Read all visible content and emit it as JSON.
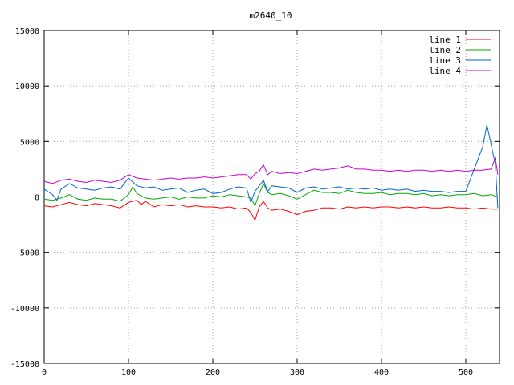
{
  "chart_data": {
    "type": "line",
    "title": "m2640_10",
    "xlabel": "",
    "ylabel": "",
    "xlim": [
      0,
      540
    ],
    "ylim": [
      -15000,
      15000
    ],
    "xticks": [
      0,
      100,
      200,
      300,
      400,
      500
    ],
    "yticks": [
      -15000,
      -10000,
      -5000,
      0,
      5000,
      10000,
      15000
    ],
    "grid": true,
    "legend_position": "top-right",
    "series": [
      {
        "name": "line 1",
        "color": "#ff0000",
        "points": [
          [
            0,
            -800
          ],
          [
            10,
            -900
          ],
          [
            20,
            -700
          ],
          [
            30,
            -500
          ],
          [
            40,
            -700
          ],
          [
            50,
            -800
          ],
          [
            60,
            -600
          ],
          [
            70,
            -700
          ],
          [
            80,
            -800
          ],
          [
            90,
            -1000
          ],
          [
            100,
            -500
          ],
          [
            110,
            -300
          ],
          [
            115,
            -700
          ],
          [
            120,
            -400
          ],
          [
            130,
            -900
          ],
          [
            140,
            -700
          ],
          [
            150,
            -800
          ],
          [
            160,
            -700
          ],
          [
            170,
            -900
          ],
          [
            180,
            -800
          ],
          [
            190,
            -900
          ],
          [
            200,
            -900
          ],
          [
            210,
            -1000
          ],
          [
            220,
            -900
          ],
          [
            230,
            -1100
          ],
          [
            240,
            -1000
          ],
          [
            245,
            -1400
          ],
          [
            250,
            -2100
          ],
          [
            255,
            -900
          ],
          [
            260,
            -400
          ],
          [
            265,
            -1000
          ],
          [
            270,
            -1200
          ],
          [
            280,
            -1100
          ],
          [
            290,
            -1300
          ],
          [
            300,
            -1600
          ],
          [
            310,
            -1300
          ],
          [
            320,
            -1200
          ],
          [
            330,
            -1000
          ],
          [
            340,
            -1000
          ],
          [
            350,
            -1100
          ],
          [
            360,
            -900
          ],
          [
            370,
            -1000
          ],
          [
            380,
            -900
          ],
          [
            390,
            -1000
          ],
          [
            400,
            -900
          ],
          [
            410,
            -900
          ],
          [
            420,
            -1000
          ],
          [
            430,
            -900
          ],
          [
            440,
            -1000
          ],
          [
            450,
            -900
          ],
          [
            460,
            -1000
          ],
          [
            470,
            -1000
          ],
          [
            480,
            -900
          ],
          [
            490,
            -1000
          ],
          [
            500,
            -1000
          ],
          [
            510,
            -1100
          ],
          [
            520,
            -1000
          ],
          [
            530,
            -1100
          ],
          [
            538,
            -1100
          ]
        ]
      },
      {
        "name": "line 2",
        "color": "#00aa00",
        "points": [
          [
            0,
            -200
          ],
          [
            10,
            -300
          ],
          [
            20,
            -100
          ],
          [
            30,
            200
          ],
          [
            40,
            -200
          ],
          [
            50,
            -300
          ],
          [
            60,
            -100
          ],
          [
            70,
            -200
          ],
          [
            80,
            -200
          ],
          [
            90,
            -400
          ],
          [
            100,
            200
          ],
          [
            105,
            900
          ],
          [
            110,
            300
          ],
          [
            120,
            -100
          ],
          [
            130,
            -200
          ],
          [
            140,
            -100
          ],
          [
            150,
            0
          ],
          [
            160,
            -200
          ],
          [
            170,
            0
          ],
          [
            180,
            -100
          ],
          [
            190,
            -100
          ],
          [
            200,
            100
          ],
          [
            210,
            0
          ],
          [
            220,
            200
          ],
          [
            230,
            100
          ],
          [
            240,
            0
          ],
          [
            245,
            -100
          ],
          [
            250,
            -800
          ],
          [
            255,
            300
          ],
          [
            260,
            1200
          ],
          [
            265,
            400
          ],
          [
            270,
            200
          ],
          [
            280,
            300
          ],
          [
            290,
            100
          ],
          [
            300,
            -200
          ],
          [
            310,
            200
          ],
          [
            320,
            600
          ],
          [
            330,
            400
          ],
          [
            340,
            400
          ],
          [
            350,
            300
          ],
          [
            360,
            600
          ],
          [
            370,
            400
          ],
          [
            380,
            300
          ],
          [
            390,
            300
          ],
          [
            400,
            400
          ],
          [
            410,
            200
          ],
          [
            420,
            300
          ],
          [
            430,
            300
          ],
          [
            440,
            200
          ],
          [
            450,
            300
          ],
          [
            460,
            100
          ],
          [
            470,
            200
          ],
          [
            480,
            100
          ],
          [
            490,
            200
          ],
          [
            500,
            200
          ],
          [
            510,
            300
          ],
          [
            520,
            100
          ],
          [
            530,
            200
          ],
          [
            538,
            0
          ]
        ]
      },
      {
        "name": "line 3",
        "color": "#0066cc",
        "points": [
          [
            0,
            700
          ],
          [
            10,
            200
          ],
          [
            15,
            -300
          ],
          [
            20,
            700
          ],
          [
            30,
            1200
          ],
          [
            40,
            800
          ],
          [
            50,
            700
          ],
          [
            60,
            600
          ],
          [
            70,
            800
          ],
          [
            80,
            900
          ],
          [
            90,
            700
          ],
          [
            100,
            1700
          ],
          [
            110,
            1000
          ],
          [
            120,
            800
          ],
          [
            130,
            900
          ],
          [
            140,
            600
          ],
          [
            150,
            700
          ],
          [
            160,
            800
          ],
          [
            170,
            400
          ],
          [
            180,
            600
          ],
          [
            190,
            700
          ],
          [
            200,
            300
          ],
          [
            210,
            400
          ],
          [
            220,
            700
          ],
          [
            230,
            900
          ],
          [
            240,
            800
          ],
          [
            245,
            -500
          ],
          [
            250,
            500
          ],
          [
            255,
            1000
          ],
          [
            260,
            1500
          ],
          [
            265,
            500
          ],
          [
            270,
            1000
          ],
          [
            280,
            900
          ],
          [
            290,
            800
          ],
          [
            300,
            400
          ],
          [
            310,
            800
          ],
          [
            320,
            900
          ],
          [
            330,
            700
          ],
          [
            340,
            800
          ],
          [
            350,
            900
          ],
          [
            360,
            700
          ],
          [
            370,
            800
          ],
          [
            380,
            700
          ],
          [
            390,
            800
          ],
          [
            400,
            600
          ],
          [
            410,
            700
          ],
          [
            420,
            600
          ],
          [
            430,
            700
          ],
          [
            440,
            500
          ],
          [
            450,
            600
          ],
          [
            460,
            500
          ],
          [
            470,
            500
          ],
          [
            480,
            400
          ],
          [
            490,
            500
          ],
          [
            500,
            500
          ],
          [
            505,
            1500
          ],
          [
            510,
            2500
          ],
          [
            515,
            3500
          ],
          [
            520,
            4500
          ],
          [
            525,
            6500
          ],
          [
            528,
            5500
          ],
          [
            532,
            4000
          ],
          [
            535,
            3000
          ],
          [
            538,
            -1000
          ]
        ]
      },
      {
        "name": "line 4",
        "color": "#cc00cc",
        "points": [
          [
            0,
            1400
          ],
          [
            10,
            1200
          ],
          [
            20,
            1500
          ],
          [
            30,
            1600
          ],
          [
            40,
            1400
          ],
          [
            50,
            1300
          ],
          [
            60,
            1500
          ],
          [
            70,
            1400
          ],
          [
            80,
            1300
          ],
          [
            90,
            1500
          ],
          [
            100,
            2000
          ],
          [
            110,
            1700
          ],
          [
            120,
            1600
          ],
          [
            130,
            1500
          ],
          [
            140,
            1600
          ],
          [
            150,
            1700
          ],
          [
            160,
            1600
          ],
          [
            170,
            1700
          ],
          [
            180,
            1700
          ],
          [
            190,
            1800
          ],
          [
            200,
            1700
          ],
          [
            210,
            1800
          ],
          [
            220,
            1900
          ],
          [
            230,
            2000
          ],
          [
            240,
            2000
          ],
          [
            245,
            1600
          ],
          [
            250,
            2100
          ],
          [
            255,
            2300
          ],
          [
            260,
            2900
          ],
          [
            265,
            2000
          ],
          [
            270,
            2300
          ],
          [
            280,
            2100
          ],
          [
            290,
            2200
          ],
          [
            300,
            2100
          ],
          [
            310,
            2300
          ],
          [
            320,
            2500
          ],
          [
            330,
            2400
          ],
          [
            340,
            2500
          ],
          [
            350,
            2600
          ],
          [
            360,
            2800
          ],
          [
            370,
            2500
          ],
          [
            380,
            2500
          ],
          [
            390,
            2400
          ],
          [
            400,
            2400
          ],
          [
            410,
            2300
          ],
          [
            420,
            2400
          ],
          [
            430,
            2300
          ],
          [
            440,
            2400
          ],
          [
            450,
            2400
          ],
          [
            460,
            2300
          ],
          [
            470,
            2400
          ],
          [
            480,
            2300
          ],
          [
            490,
            2400
          ],
          [
            500,
            2300
          ],
          [
            510,
            2400
          ],
          [
            520,
            2400
          ],
          [
            530,
            2500
          ],
          [
            535,
            3500
          ],
          [
            538,
            2000
          ]
        ]
      }
    ]
  }
}
